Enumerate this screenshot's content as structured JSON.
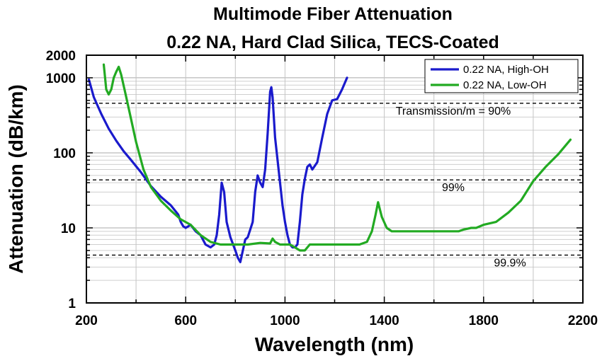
{
  "chart_data": {
    "type": "line",
    "title": "Multimode Fiber Attenuation",
    "subtitle": "0.22 NA,  Hard Clad Silica, TECS-Coated",
    "xlabel": "Wavelength (nm)",
    "ylabel": "Attenuation (dB/km)",
    "xlim": [
      200,
      2200
    ],
    "ylim": [
      1,
      2000
    ],
    "yscale": "log",
    "x_ticks": [
      "200",
      "600",
      "1000",
      "1400",
      "1800",
      "2200"
    ],
    "y_ticks": [
      "1",
      "10",
      "100",
      "1000",
      "2000"
    ],
    "grid": true,
    "legend_position": "top-right",
    "series": [
      {
        "name": "0.22 NA, High-OH",
        "color": "#1a1acc",
        "x": [
          210,
          230,
          260,
          290,
          320,
          350,
          380,
          420,
          460,
          500,
          540,
          570,
          580,
          590,
          600,
          620,
          640,
          660,
          680,
          700,
          715,
          725,
          735,
          745,
          755,
          765,
          780,
          800,
          810,
          820,
          840,
          850,
          870,
          880,
          890,
          900,
          910,
          920,
          930,
          940,
          945,
          950,
          960,
          970,
          980,
          990,
          1000,
          1010,
          1020,
          1030,
          1040,
          1050,
          1060,
          1070,
          1080,
          1090,
          1100,
          1110,
          1130,
          1150,
          1170,
          1190,
          1210,
          1230,
          1250
        ],
        "y": [
          950,
          550,
          330,
          210,
          145,
          105,
          80,
          55,
          36,
          26,
          20,
          15,
          12,
          10.5,
          10,
          11,
          9,
          8,
          6,
          5.5,
          6,
          8,
          15,
          40,
          30,
          12,
          7.5,
          5,
          4,
          3.5,
          7,
          7.5,
          12,
          30,
          50,
          40,
          35,
          60,
          180,
          650,
          750,
          550,
          160,
          80,
          40,
          20,
          12,
          8,
          6,
          5.5,
          5.5,
          6,
          12,
          28,
          45,
          65,
          70,
          60,
          75,
          160,
          330,
          500,
          520,
          700,
          1000
        ]
      },
      {
        "name": "0.22 NA, Low-OH",
        "color": "#22aa22",
        "x": [
          270,
          280,
          290,
          300,
          310,
          320,
          330,
          340,
          360,
          380,
          400,
          430,
          460,
          500,
          540,
          580,
          620,
          660,
          700,
          740,
          800,
          850,
          900,
          940,
          950,
          960,
          980,
          1000,
          1020,
          1040,
          1060,
          1080,
          1100,
          1150,
          1200,
          1250,
          1300,
          1330,
          1350,
          1365,
          1375,
          1390,
          1410,
          1430,
          1450,
          1500,
          1600,
          1700,
          1720,
          1750,
          1770,
          1800,
          1850,
          1900,
          1950,
          2000,
          2050,
          2100,
          2150
        ],
        "y": [
          1500,
          700,
          600,
          700,
          1000,
          1200,
          1400,
          1100,
          560,
          280,
          140,
          60,
          35,
          23,
          17,
          13,
          11,
          8,
          6.5,
          6,
          6,
          6,
          6.3,
          6.2,
          7.2,
          6.5,
          6,
          6,
          6,
          5.5,
          5,
          5,
          6,
          6,
          6,
          6,
          6,
          6.5,
          9,
          15,
          22,
          14,
          10,
          9,
          9,
          9,
          9,
          9,
          9.5,
          10,
          10,
          11,
          12,
          16,
          23,
          42,
          65,
          95,
          150
        ]
      }
    ],
    "annotations": [
      {
        "text": "Transmission/m = 90%",
        "y": 457
      },
      {
        "text": "99%",
        "y": 43.6
      },
      {
        "text": "99.9%",
        "y": 4.34
      }
    ]
  }
}
